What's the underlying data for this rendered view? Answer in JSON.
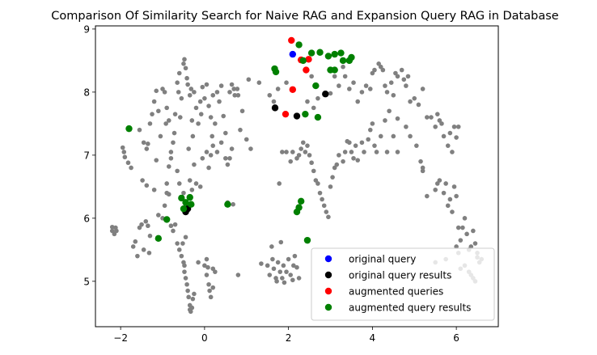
{
  "chart_data": {
    "type": "scatter",
    "title": "Comparison Of Similarity Search for Naive RAG and Expansion Query RAG in Database",
    "xlabel": "",
    "ylabel": "",
    "xlim": [
      -2.6,
      7.0
    ],
    "ylim": [
      4.28,
      9.05
    ],
    "xticks": [
      -2,
      0,
      2,
      4,
      6
    ],
    "yticks": [
      5,
      6,
      7,
      8,
      9
    ],
    "grid": false,
    "legend_position": "lower-right",
    "background_points": {
      "color": "#808080",
      "points": [
        [
          -2.2,
          5.8
        ],
        [
          -2.2,
          5.86
        ],
        [
          -2.15,
          5.75
        ],
        [
          -2.12,
          5.85
        ],
        [
          -2.1,
          5.8
        ],
        [
          -1.95,
          7.12
        ],
        [
          -1.92,
          7.05
        ],
        [
          -1.9,
          6.97
        ],
        [
          -1.82,
          6.88
        ],
        [
          -1.75,
          6.8
        ],
        [
          -1.7,
          5.55
        ],
        [
          -1.65,
          5.63
        ],
        [
          -1.6,
          5.4
        ],
        [
          -1.55,
          5.85
        ],
        [
          -1.5,
          5.9
        ],
        [
          -1.45,
          5.5
        ],
        [
          -1.4,
          5.95
        ],
        [
          -1.35,
          5.88
        ],
        [
          -1.32,
          5.45
        ],
        [
          -1.3,
          5.72
        ],
        [
          -1.48,
          6.6
        ],
        [
          -1.38,
          6.52
        ],
        [
          -1.2,
          6.45
        ],
        [
          -1.15,
          6.92
        ],
        [
          -1.1,
          6.05
        ],
        [
          -1.0,
          6.0
        ],
        [
          -0.95,
          6.2
        ],
        [
          -0.9,
          6.4
        ],
        [
          -0.85,
          6.38
        ],
        [
          -0.8,
          5.88
        ],
        [
          -0.75,
          5.8
        ],
        [
          -0.7,
          5.9
        ],
        [
          -0.65,
          5.6
        ],
        [
          -0.6,
          5.5
        ],
        [
          -0.55,
          5.4
        ],
        [
          -0.5,
          5.3
        ],
        [
          -0.48,
          5.25
        ],
        [
          -0.45,
          5.05
        ],
        [
          -0.42,
          4.95
        ],
        [
          -0.4,
          4.85
        ],
        [
          -0.38,
          4.75
        ],
        [
          -0.35,
          4.62
        ],
        [
          -0.35,
          4.55
        ],
        [
          -0.33,
          4.52
        ],
        [
          -0.3,
          4.58
        ],
        [
          -0.28,
          4.72
        ],
        [
          -0.25,
          4.8
        ],
        [
          -0.52,
          5.6
        ],
        [
          -0.45,
          5.7
        ],
        [
          -0.48,
          5.15
        ],
        [
          -1.55,
          7.4
        ],
        [
          -1.45,
          7.2
        ],
        [
          -1.38,
          7.1
        ],
        [
          -1.35,
          7.18
        ],
        [
          -1.3,
          7.5
        ],
        [
          -1.25,
          7.65
        ],
        [
          -1.2,
          7.85
        ],
        [
          -1.15,
          8.02
        ],
        [
          -1.1,
          7.7
        ],
        [
          -1.05,
          7.3
        ],
        [
          -1.0,
          8.05
        ],
        [
          -0.95,
          8.0
        ],
        [
          -0.92,
          7.5
        ],
        [
          -0.9,
          7.75
        ],
        [
          -0.85,
          7.55
        ],
        [
          -0.8,
          7.05
        ],
        [
          -0.75,
          7.2
        ],
        [
          -0.72,
          7.35
        ],
        [
          -0.7,
          7.65
        ],
        [
          -0.65,
          8.15
        ],
        [
          -0.62,
          8.0
        ],
        [
          -0.6,
          8.3
        ],
        [
          -0.58,
          7.6
        ],
        [
          -0.55,
          7.9
        ],
        [
          -0.5,
          8.45
        ],
        [
          -0.48,
          8.52
        ],
        [
          -0.45,
          8.38
        ],
        [
          -0.42,
          8.22
        ],
        [
          -0.4,
          8.12
        ],
        [
          -0.38,
          7.1
        ],
        [
          -0.35,
          7.95
        ],
        [
          -0.32,
          8.05
        ],
        [
          -0.3,
          7.55
        ],
        [
          -0.28,
          7.3
        ],
        [
          -0.25,
          8.0
        ],
        [
          -0.2,
          7.75
        ],
        [
          -0.15,
          7.5
        ],
        [
          -0.1,
          7.85
        ],
        [
          -0.08,
          7.65
        ],
        [
          -0.05,
          8.08
        ],
        [
          0.0,
          7.9
        ],
        [
          0.05,
          8.12
        ],
        [
          0.1,
          7.78
        ],
        [
          0.15,
          7.6
        ],
        [
          0.18,
          7.3
        ],
        [
          0.2,
          7.95
        ],
        [
          0.25,
          7.5
        ],
        [
          0.3,
          8.0
        ],
        [
          0.35,
          7.85
        ],
        [
          0.4,
          8.1
        ],
        [
          0.45,
          7.62
        ],
        [
          0.5,
          7.35
        ],
        [
          0.6,
          8.0
        ],
        [
          0.65,
          8.12
        ],
        [
          0.7,
          8.05
        ],
        [
          0.72,
          7.95
        ],
        [
          0.78,
          8.05
        ],
        [
          0.8,
          7.95
        ],
        [
          0.9,
          7.7
        ],
        [
          0.85,
          7.4
        ],
        [
          1.0,
          7.25
        ],
        [
          1.05,
          8.2
        ],
        [
          1.1,
          7.1
        ],
        [
          0.55,
          6.25
        ],
        [
          -0.85,
          6.82
        ],
        [
          -0.9,
          6.55
        ],
        [
          -0.8,
          6.95
        ],
        [
          -0.65,
          6.75
        ],
        [
          -0.6,
          6.55
        ],
        [
          -0.5,
          6.4
        ],
        [
          -0.45,
          6.2
        ],
        [
          -0.35,
          6.6
        ],
        [
          -0.3,
          6.45
        ],
        [
          -0.25,
          6.85
        ],
        [
          -0.2,
          6.55
        ],
        [
          -0.1,
          6.5
        ],
        [
          -0.05,
          6.95
        ],
        [
          0.05,
          7.05
        ],
        [
          0.1,
          6.8
        ],
        [
          0.15,
          7.0
        ],
        [
          0.2,
          7.15
        ],
        [
          0.3,
          7.05
        ],
        [
          0.4,
          7.2
        ],
        [
          0.5,
          6.95
        ],
        [
          0.55,
          6.85
        ],
        [
          0.6,
          6.95
        ],
        [
          0.65,
          7.1
        ],
        [
          0.68,
          6.22
        ],
        [
          0.0,
          5.25
        ],
        [
          0.05,
          5.1
        ],
        [
          0.08,
          5.22
        ],
        [
          0.1,
          4.95
        ],
        [
          0.12,
          4.85
        ],
        [
          0.15,
          4.75
        ],
        [
          0.2,
          5.2
        ],
        [
          0.25,
          5.15
        ],
        [
          0.8,
          5.1
        ],
        [
          1.35,
          5.28
        ],
        [
          1.5,
          5.25
        ],
        [
          1.55,
          5.1
        ],
        [
          1.6,
          5.55
        ],
        [
          1.62,
          5.35
        ],
        [
          1.65,
          5.2
        ],
        [
          1.7,
          5.05
        ],
        [
          1.72,
          5.0
        ],
        [
          1.75,
          5.3
        ],
        [
          1.8,
          5.15
        ],
        [
          1.85,
          5.05
        ],
        [
          1.88,
          5.25
        ],
        [
          1.9,
          4.98
        ],
        [
          1.95,
          5.15
        ],
        [
          2.0,
          5.35
        ],
        [
          2.05,
          5.1
        ],
        [
          2.1,
          5.02
        ],
        [
          2.12,
          5.25
        ],
        [
          2.15,
          5.4
        ],
        [
          2.2,
          5.22
        ],
        [
          2.25,
          5.05
        ],
        [
          1.82,
          5.62
        ],
        [
          1.78,
          6.55
        ],
        [
          1.85,
          7.05
        ],
        [
          1.95,
          7.05
        ],
        [
          2.05,
          6.9
        ],
        [
          2.1,
          7.05
        ],
        [
          2.2,
          6.95
        ],
        [
          2.25,
          7.0
        ],
        [
          2.3,
          7.1
        ],
        [
          2.35,
          7.2
        ],
        [
          2.4,
          7.05
        ],
        [
          2.45,
          7.15
        ],
        [
          2.5,
          7.0
        ],
        [
          2.55,
          6.88
        ],
        [
          2.6,
          6.75
        ],
        [
          2.65,
          6.6
        ],
        [
          2.7,
          6.55
        ],
        [
          2.75,
          6.4
        ],
        [
          2.8,
          6.3
        ],
        [
          2.85,
          6.2
        ],
        [
          2.9,
          6.1
        ],
        [
          2.95,
          6.02
        ],
        [
          3.0,
          6.5
        ],
        [
          3.05,
          6.65
        ],
        [
          3.1,
          6.8
        ],
        [
          3.15,
          6.85
        ],
        [
          3.2,
          7.0
        ],
        [
          3.3,
          6.9
        ],
        [
          3.35,
          7.05
        ],
        [
          3.4,
          7.22
        ],
        [
          3.45,
          7.2
        ],
        [
          3.5,
          7.05
        ],
        [
          3.55,
          6.95
        ],
        [
          3.6,
          7.15
        ],
        [
          3.65,
          6.92
        ],
        [
          3.75,
          7.2
        ],
        [
          3.8,
          7.05
        ],
        [
          3.9,
          7.25
        ],
        [
          3.95,
          7.4
        ],
        [
          4.0,
          7.5
        ],
        [
          4.05,
          7.15
        ],
        [
          4.1,
          7.05
        ],
        [
          4.2,
          7.3
        ],
        [
          4.3,
          7.55
        ],
        [
          4.35,
          7.05
        ],
        [
          4.5,
          7.3
        ],
        [
          4.6,
          7.05
        ],
        [
          3.1,
          8.25
        ],
        [
          3.2,
          8.1
        ],
        [
          3.3,
          8.4
        ],
        [
          3.35,
          8.25
        ],
        [
          3.45,
          8.05
        ],
        [
          3.55,
          8.15
        ],
        [
          3.65,
          7.85
        ],
        [
          3.75,
          8.0
        ],
        [
          3.85,
          8.1
        ],
        [
          3.95,
          8.05
        ],
        [
          4.0,
          8.3
        ],
        [
          4.05,
          8.35
        ],
        [
          4.15,
          8.45
        ],
        [
          4.2,
          8.4
        ],
        [
          4.25,
          8.35
        ],
        [
          4.3,
          8.1
        ],
        [
          4.35,
          8.0
        ],
        [
          4.45,
          8.15
        ],
        [
          4.5,
          7.95
        ],
        [
          4.55,
          8.3
        ],
        [
          4.6,
          8.25
        ],
        [
          4.7,
          8.35
        ],
        [
          4.75,
          8.2
        ],
        [
          4.8,
          8.1
        ],
        [
          4.85,
          8.25
        ],
        [
          4.9,
          7.85
        ],
        [
          5.0,
          7.9
        ],
        [
          5.1,
          7.8
        ],
        [
          5.2,
          8.05
        ],
        [
          5.3,
          7.6
        ],
        [
          5.4,
          7.6
        ],
        [
          5.5,
          7.45
        ],
        [
          5.55,
          7.65
        ],
        [
          5.6,
          7.55
        ],
        [
          5.65,
          7.5
        ],
        [
          5.7,
          7.3
        ],
        [
          5.8,
          7.15
        ],
        [
          5.85,
          7.35
        ],
        [
          5.9,
          7.05
        ],
        [
          6.0,
          7.28
        ],
        [
          5.95,
          7.45
        ],
        [
          6.05,
          7.45
        ],
        [
          4.4,
          7.7
        ],
        [
          4.6,
          7.58
        ],
        [
          4.8,
          7.45
        ],
        [
          4.9,
          7.3
        ],
        [
          5.05,
          7.15
        ],
        [
          5.15,
          6.9
        ],
        [
          5.2,
          6.75
        ],
        [
          5.2,
          6.8
        ],
        [
          5.3,
          6.35
        ],
        [
          5.5,
          6.45
        ],
        [
          5.55,
          6.55
        ],
        [
          5.6,
          6.6
        ],
        [
          5.7,
          6.4
        ],
        [
          5.75,
          6.55
        ],
        [
          5.8,
          6.2
        ],
        [
          5.85,
          6.3
        ],
        [
          5.9,
          6.1
        ],
        [
          5.95,
          6.5
        ],
        [
          6.0,
          6.35
        ],
        [
          6.05,
          5.85
        ],
        [
          6.1,
          5.65
        ],
        [
          6.15,
          5.85
        ],
        [
          6.2,
          6.0
        ],
        [
          6.25,
          5.75
        ],
        [
          6.3,
          5.5
        ],
        [
          6.35,
          5.55
        ],
        [
          6.4,
          5.8
        ],
        [
          6.45,
          5.6
        ],
        [
          6.5,
          5.45
        ],
        [
          6.55,
          5.3
        ],
        [
          6.6,
          5.35
        ],
        [
          6.0,
          5.55
        ],
        [
          6.05,
          5.45
        ],
        [
          6.1,
          5.2
        ],
        [
          6.2,
          5.25
        ],
        [
          6.3,
          5.15
        ],
        [
          6.35,
          5.1
        ],
        [
          6.4,
          5.05
        ],
        [
          6.45,
          5.0
        ],
        [
          6.5,
          5.38
        ],
        [
          5.5,
          5.3
        ],
        [
          5.6,
          5.1
        ],
        [
          5.75,
          5.35
        ],
        [
          1.3,
          8.15
        ],
        [
          1.55,
          7.95
        ],
        [
          1.65,
          7.85
        ],
        [
          1.75,
          8.05
        ],
        [
          1.95,
          8.15
        ],
        [
          2.45,
          7.85
        ],
        [
          2.6,
          7.75
        ],
        [
          2.7,
          7.9
        ],
        [
          2.55,
          8.25
        ],
        [
          3.0,
          7.98
        ],
        [
          -0.15,
          5.3
        ],
        [
          0.05,
          5.35
        ],
        [
          0.2,
          4.9
        ]
      ]
    },
    "series": [
      {
        "name": "original query",
        "color": "#0000ff",
        "points": [
          [
            2.1,
            8.6
          ]
        ]
      },
      {
        "name": "original query results",
        "color": "#000000",
        "points": [
          [
            1.68,
            7.75
          ],
          [
            2.2,
            7.62
          ],
          [
            2.88,
            7.97
          ],
          [
            -0.45,
            6.1
          ],
          [
            -0.4,
            6.15
          ]
        ]
      },
      {
        "name": "augmented queries",
        "color": "#ff0000",
        "points": [
          [
            2.07,
            8.82
          ],
          [
            2.3,
            8.51
          ],
          [
            2.48,
            8.52
          ],
          [
            2.42,
            8.35
          ],
          [
            2.1,
            8.04
          ],
          [
            1.93,
            7.65
          ]
        ]
      },
      {
        "name": "augmented query results",
        "color": "#008000",
        "points": [
          [
            2.25,
            8.75
          ],
          [
            2.35,
            8.5
          ],
          [
            2.55,
            8.62
          ],
          [
            2.75,
            8.63
          ],
          [
            2.95,
            8.57
          ],
          [
            3.1,
            8.6
          ],
          [
            3.25,
            8.62
          ],
          [
            3.3,
            8.5
          ],
          [
            3.45,
            8.5
          ],
          [
            3.5,
            8.55
          ],
          [
            3.0,
            8.35
          ],
          [
            3.1,
            8.35
          ],
          [
            1.67,
            8.37
          ],
          [
            1.7,
            8.32
          ],
          [
            2.65,
            8.1
          ],
          [
            2.7,
            7.6
          ],
          [
            2.4,
            7.65
          ],
          [
            -1.8,
            7.42
          ],
          [
            -0.55,
            6.32
          ],
          [
            -0.45,
            6.25
          ],
          [
            -0.35,
            6.33
          ],
          [
            -0.5,
            6.15
          ],
          [
            -0.32,
            6.22
          ],
          [
            -0.9,
            5.98
          ],
          [
            -1.1,
            5.68
          ],
          [
            0.55,
            6.22
          ],
          [
            2.3,
            6.27
          ],
          [
            2.25,
            6.17
          ],
          [
            2.2,
            6.1
          ],
          [
            2.45,
            5.65
          ]
        ]
      }
    ]
  }
}
